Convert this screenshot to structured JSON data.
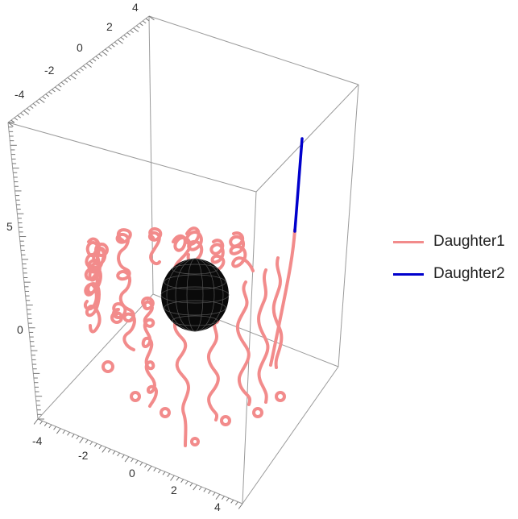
{
  "chart_data": {
    "type": "line",
    "subtype": "3d-trajectory",
    "axes": {
      "x": {
        "ticks": [
          "-4",
          "-2",
          "0",
          "2",
          "4"
        ],
        "range": [
          -4.5,
          4.5
        ]
      },
      "y": {
        "ticks": [
          "-4",
          "-2",
          "0",
          "2",
          "4"
        ],
        "range": [
          -4.5,
          4.5
        ]
      },
      "z": {
        "ticks": [
          "0",
          "5"
        ],
        "range": [
          -4,
          9
        ]
      }
    },
    "box": true,
    "grid": false,
    "legend_position": "right",
    "series": [
      {
        "name": "Daughter1",
        "color": "#f08080"
      },
      {
        "name": "Daughter2",
        "color": "#0000cc"
      }
    ],
    "sphere": {
      "color": "#000000",
      "mesh_color": "#555555"
    }
  }
}
